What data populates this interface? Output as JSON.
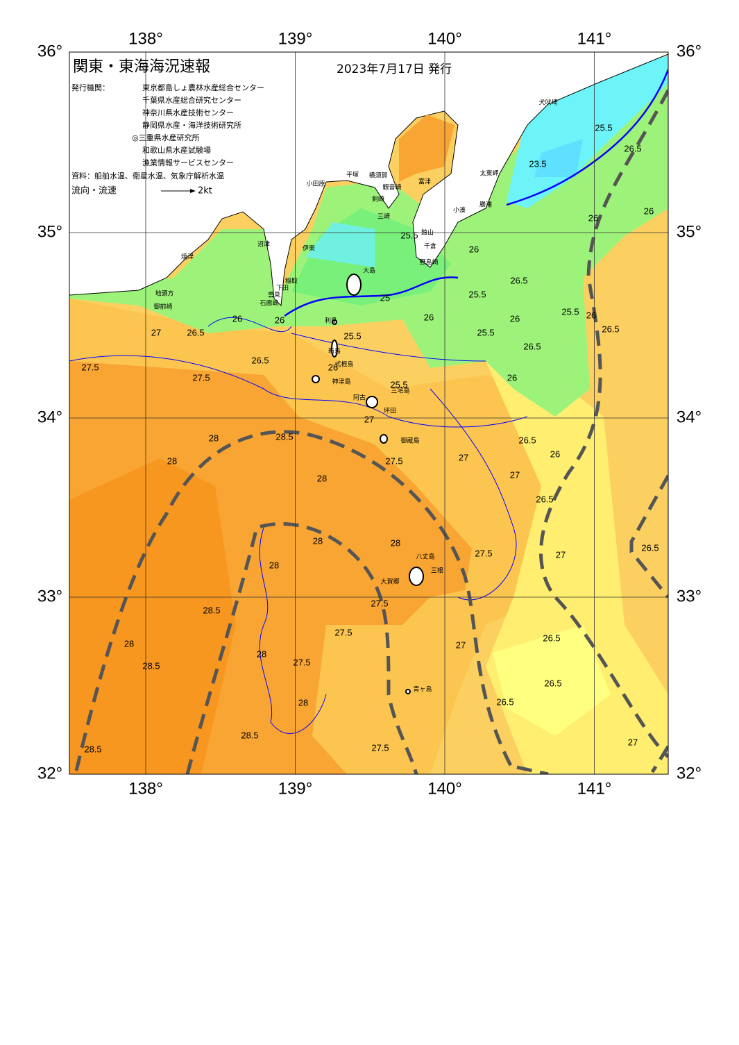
{
  "header": {
    "title": "関東・東海海況速報",
    "date": "2023年7月17日 発行",
    "issuer_label": "発行機関：",
    "issuers": [
      "東京都島しょ農林水産総合センター",
      "千葉県水産総合研究センター",
      "神奈川県水産技術センター",
      "静岡県水産・海洋技術研究所",
      "◎三重県水産研究所",
      "和歌山県水産試験場",
      "漁業情報サービスセンター"
    ],
    "source": "資料：船舶水温、衛星水温、気象庁解析水温",
    "flow_label": "流向・流速",
    "flow_scale": "2kt"
  },
  "map": {
    "lon_ticks": [
      {
        "value": 138,
        "label": "138°"
      },
      {
        "value": 139,
        "label": "139°"
      },
      {
        "value": 140,
        "label": "140°"
      },
      {
        "value": 141,
        "label": "141°"
      }
    ],
    "lat_ticks": [
      {
        "value": 36,
        "label": "36°"
      },
      {
        "value": 35,
        "label": "35°"
      },
      {
        "value": 34,
        "label": "34°"
      },
      {
        "value": 33,
        "label": "33°"
      },
      {
        "value": 32,
        "label": "32°"
      }
    ],
    "place_names": [
      "犬吠埼",
      "太東岬",
      "勝浦",
      "小湊",
      "館山",
      "千倉",
      "野島崎",
      "富津",
      "横須賀",
      "観音崎",
      "平塚",
      "小田原",
      "剣崎",
      "三崎",
      "伊東",
      "稲取",
      "下田",
      "雲見",
      "石廊崎",
      "沼津",
      "焼津",
      "地頭方",
      "御前崎",
      "大島",
      "利島",
      "新島",
      "式根島",
      "神津島",
      "三宅島",
      "阿古",
      "坪田",
      "御蔵島",
      "八丈島",
      "三根",
      "大賀郷",
      "青ヶ島"
    ],
    "contour_labels": [
      23.5,
      25.5,
      26.5,
      26,
      26,
      25,
      25.5,
      26,
      25.5,
      26.5,
      26,
      25.5,
      26,
      25.5,
      26,
      26.5,
      26.5,
      26,
      25.5,
      26,
      25.5,
      27,
      27.5,
      26.5,
      26,
      27,
      27,
      26.5,
      27.5,
      27,
      26.5,
      26.5,
      26.5,
      26.5,
      27,
      27.5,
      27.5,
      27.5,
      28,
      28,
      28.5,
      27.5,
      28.5,
      28.5,
      28,
      28.5,
      28,
      28,
      28,
      28,
      28,
      28,
      28.5,
      27.5,
      27.5,
      27,
      26.5,
      26,
      26,
      26.5,
      27
    ]
  }
}
